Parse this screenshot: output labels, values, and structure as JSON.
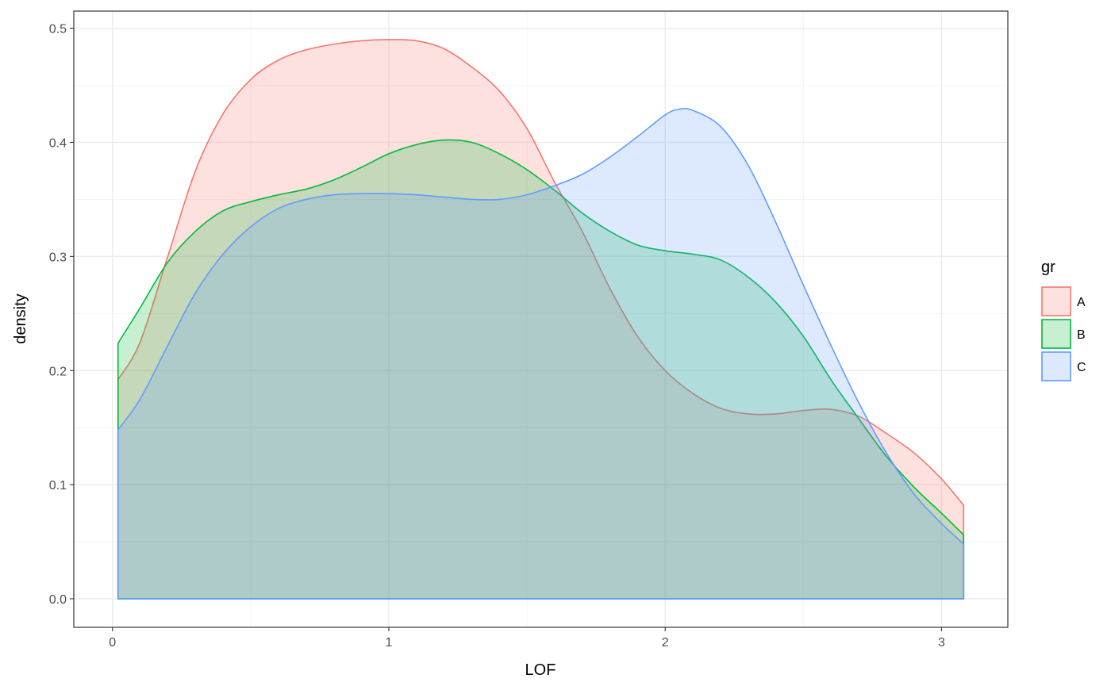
{
  "chart_data": {
    "type": "area",
    "xlabel": "LOF",
    "ylabel": "density",
    "xlim": [
      -0.14,
      3.24
    ],
    "ylim": [
      -0.025,
      0.515
    ],
    "x_ticks": [
      "0",
      "1",
      "2",
      "3"
    ],
    "y_ticks": [
      "0.0",
      "0.1",
      "0.2",
      "0.3",
      "0.4",
      "0.5"
    ],
    "grid": true,
    "legend": {
      "title": "gr",
      "position": "right"
    },
    "fill_opacity": 0.22,
    "series": [
      {
        "name": "A",
        "color": "#F8766D",
        "points": [
          [
            0.02,
            0.192
          ],
          [
            0.1,
            0.225
          ],
          [
            0.2,
            0.3
          ],
          [
            0.3,
            0.375
          ],
          [
            0.4,
            0.425
          ],
          [
            0.5,
            0.455
          ],
          [
            0.6,
            0.472
          ],
          [
            0.7,
            0.481
          ],
          [
            0.8,
            0.486
          ],
          [
            0.9,
            0.489
          ],
          [
            1.0,
            0.49
          ],
          [
            1.1,
            0.489
          ],
          [
            1.2,
            0.482
          ],
          [
            1.3,
            0.466
          ],
          [
            1.4,
            0.445
          ],
          [
            1.5,
            0.412
          ],
          [
            1.6,
            0.365
          ],
          [
            1.7,
            0.322
          ],
          [
            1.8,
            0.272
          ],
          [
            1.9,
            0.23
          ],
          [
            2.0,
            0.2
          ],
          [
            2.1,
            0.18
          ],
          [
            2.2,
            0.167
          ],
          [
            2.3,
            0.162
          ],
          [
            2.4,
            0.162
          ],
          [
            2.5,
            0.165
          ],
          [
            2.6,
            0.166
          ],
          [
            2.7,
            0.16
          ],
          [
            2.8,
            0.145
          ],
          [
            2.9,
            0.128
          ],
          [
            3.0,
            0.105
          ],
          [
            3.08,
            0.082
          ]
        ]
      },
      {
        "name": "B",
        "color": "#00BA38",
        "points": [
          [
            0.02,
            0.224
          ],
          [
            0.1,
            0.255
          ],
          [
            0.2,
            0.295
          ],
          [
            0.3,
            0.322
          ],
          [
            0.4,
            0.34
          ],
          [
            0.5,
            0.348
          ],
          [
            0.6,
            0.354
          ],
          [
            0.7,
            0.359
          ],
          [
            0.8,
            0.367
          ],
          [
            0.9,
            0.378
          ],
          [
            1.0,
            0.39
          ],
          [
            1.1,
            0.398
          ],
          [
            1.2,
            0.402
          ],
          [
            1.3,
            0.4
          ],
          [
            1.4,
            0.39
          ],
          [
            1.5,
            0.376
          ],
          [
            1.6,
            0.358
          ],
          [
            1.7,
            0.338
          ],
          [
            1.8,
            0.322
          ],
          [
            1.9,
            0.31
          ],
          [
            2.0,
            0.305
          ],
          [
            2.1,
            0.302
          ],
          [
            2.2,
            0.297
          ],
          [
            2.3,
            0.282
          ],
          [
            2.4,
            0.26
          ],
          [
            2.5,
            0.23
          ],
          [
            2.6,
            0.192
          ],
          [
            2.7,
            0.158
          ],
          [
            2.8,
            0.125
          ],
          [
            2.9,
            0.098
          ],
          [
            3.0,
            0.075
          ],
          [
            3.08,
            0.056
          ]
        ]
      },
      {
        "name": "C",
        "color": "#619CFF",
        "points": [
          [
            0.02,
            0.148
          ],
          [
            0.1,
            0.175
          ],
          [
            0.2,
            0.222
          ],
          [
            0.3,
            0.268
          ],
          [
            0.4,
            0.302
          ],
          [
            0.5,
            0.326
          ],
          [
            0.6,
            0.342
          ],
          [
            0.7,
            0.35
          ],
          [
            0.8,
            0.354
          ],
          [
            0.9,
            0.355
          ],
          [
            1.0,
            0.355
          ],
          [
            1.1,
            0.354
          ],
          [
            1.2,
            0.352
          ],
          [
            1.3,
            0.35
          ],
          [
            1.4,
            0.35
          ],
          [
            1.5,
            0.354
          ],
          [
            1.6,
            0.362
          ],
          [
            1.7,
            0.372
          ],
          [
            1.8,
            0.387
          ],
          [
            1.9,
            0.405
          ],
          [
            2.0,
            0.424
          ],
          [
            2.05,
            0.429
          ],
          [
            2.1,
            0.428
          ],
          [
            2.2,
            0.414
          ],
          [
            2.3,
            0.38
          ],
          [
            2.4,
            0.33
          ],
          [
            2.5,
            0.275
          ],
          [
            2.6,
            0.222
          ],
          [
            2.7,
            0.172
          ],
          [
            2.8,
            0.128
          ],
          [
            2.9,
            0.092
          ],
          [
            3.0,
            0.066
          ],
          [
            3.08,
            0.048
          ]
        ]
      }
    ]
  }
}
